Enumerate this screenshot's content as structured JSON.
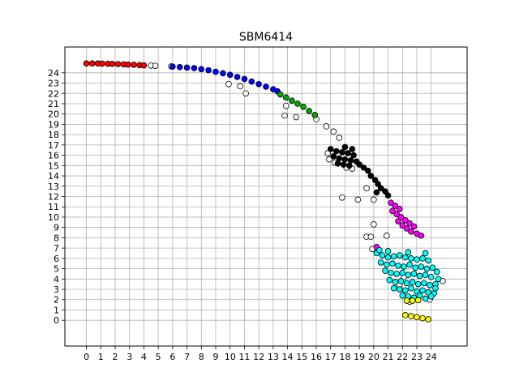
{
  "chart_data": {
    "type": "scatter",
    "title": "SBM6414",
    "xlabel": "",
    "ylabel": "",
    "xlim": [
      -1.5,
      26.5
    ],
    "ylim": [
      -2.5,
      26.5
    ],
    "xticks": [
      0,
      1,
      2,
      3,
      4,
      5,
      6,
      7,
      8,
      9,
      10,
      11,
      12,
      13,
      14,
      15,
      16,
      17,
      18,
      19,
      20,
      21,
      22,
      23,
      24
    ],
    "yticks": [
      0,
      1,
      2,
      3,
      4,
      5,
      6,
      7,
      8,
      9,
      10,
      11,
      12,
      13,
      14,
      15,
      16,
      17,
      18,
      19,
      20,
      21,
      22,
      23,
      24
    ],
    "grid": true,
    "legend": "none",
    "series": [
      {
        "color": "#ff0000",
        "points": [
          [
            0,
            24.9
          ],
          [
            0.4,
            24.9
          ],
          [
            0.8,
            24.9
          ],
          [
            1.1,
            24.88
          ],
          [
            1.5,
            24.87
          ],
          [
            1.8,
            24.86
          ],
          [
            2.2,
            24.84
          ],
          [
            2.6,
            24.82
          ],
          [
            2.9,
            24.8
          ],
          [
            3.3,
            24.78
          ],
          [
            3.7,
            24.75
          ],
          [
            4.0,
            24.72
          ]
        ]
      },
      {
        "color": "#ffffff",
        "points": [
          [
            4.5,
            24.7
          ],
          [
            4.8,
            24.68
          ],
          [
            5.9,
            24.62
          ],
          [
            9.9,
            22.9
          ],
          [
            10.7,
            22.7
          ],
          [
            11.1,
            22.0
          ],
          [
            13.9,
            20.8
          ],
          [
            14.6,
            19.7
          ],
          [
            13.8,
            19.85
          ],
          [
            16.0,
            19.5
          ],
          [
            16.7,
            18.8
          ],
          [
            17.2,
            18.3
          ],
          [
            17.6,
            17.7
          ],
          [
            16.8,
            16.2
          ],
          [
            16.9,
            15.6
          ],
          [
            17.3,
            15.3
          ],
          [
            18.1,
            14.8
          ],
          [
            18.5,
            14.7
          ],
          [
            19.5,
            12.8
          ],
          [
            18.9,
            11.7
          ],
          [
            20.0,
            11.7
          ],
          [
            17.8,
            11.9
          ],
          [
            20.0,
            9.3
          ],
          [
            19.5,
            8.1
          ],
          [
            19.8,
            8.1
          ],
          [
            20.9,
            8.2
          ],
          [
            19.9,
            6.9
          ],
          [
            22.1,
            4.2
          ],
          [
            21.8,
            3.4
          ],
          [
            23.9,
            2.0
          ],
          [
            24.8,
            3.8
          ],
          [
            22.5,
            1.8
          ]
        ]
      },
      {
        "color": "#0000ff",
        "points": [
          [
            6.0,
            24.6
          ],
          [
            6.5,
            24.55
          ],
          [
            7.0,
            24.5
          ],
          [
            7.5,
            24.45
          ],
          [
            8.0,
            24.35
          ],
          [
            8.5,
            24.25
          ],
          [
            9.0,
            24.1
          ],
          [
            9.5,
            23.95
          ],
          [
            10.0,
            23.8
          ],
          [
            10.5,
            23.6
          ],
          [
            11.0,
            23.4
          ],
          [
            11.5,
            23.15
          ],
          [
            12.0,
            22.9
          ],
          [
            12.5,
            22.65
          ],
          [
            13.0,
            22.4
          ],
          [
            13.3,
            22.2
          ]
        ]
      },
      {
        "color": "#00aa00",
        "points": [
          [
            13.5,
            21.9
          ],
          [
            13.9,
            21.6
          ],
          [
            14.3,
            21.3
          ],
          [
            14.7,
            21.0
          ],
          [
            15.1,
            20.7
          ],
          [
            15.5,
            20.3
          ],
          [
            15.9,
            19.9
          ]
        ]
      },
      {
        "color": "#000000",
        "points": [
          [
            17.0,
            16.6
          ],
          [
            17.4,
            16.4
          ],
          [
            17.8,
            16.3
          ],
          [
            18.2,
            16.2
          ],
          [
            18.6,
            16.0
          ],
          [
            17.2,
            15.9
          ],
          [
            17.6,
            15.7
          ],
          [
            18.0,
            15.6
          ],
          [
            18.4,
            15.5
          ],
          [
            18.8,
            15.4
          ],
          [
            17.5,
            15.2
          ],
          [
            17.9,
            15.1
          ],
          [
            18.3,
            15.0
          ],
          [
            19.0,
            15.1
          ],
          [
            19.3,
            14.8
          ],
          [
            19.6,
            14.5
          ],
          [
            19.8,
            14.0
          ],
          [
            20.1,
            13.6
          ],
          [
            20.3,
            13.2
          ],
          [
            20.5,
            12.8
          ],
          [
            20.8,
            12.5
          ],
          [
            21.0,
            12.1
          ],
          [
            20.2,
            12.4
          ],
          [
            18.0,
            16.8
          ],
          [
            18.5,
            16.6
          ]
        ]
      },
      {
        "color": "#ff00ff",
        "points": [
          [
            21.2,
            11.4
          ],
          [
            21.5,
            11.1
          ],
          [
            21.8,
            10.8
          ],
          [
            21.3,
            10.6
          ],
          [
            21.6,
            10.3
          ],
          [
            21.9,
            10.0
          ],
          [
            22.2,
            9.7
          ],
          [
            22.5,
            9.4
          ],
          [
            22.8,
            9.1
          ],
          [
            22.3,
            8.9
          ],
          [
            22.6,
            8.6
          ],
          [
            23.0,
            8.4
          ],
          [
            23.3,
            8.2
          ],
          [
            21.7,
            9.6
          ],
          [
            22.0,
            9.2
          ],
          [
            20.2,
            7.1
          ]
        ]
      },
      {
        "color": "#00ffff",
        "points": [
          [
            20.2,
            6.5
          ],
          [
            20.6,
            6.3
          ],
          [
            21.0,
            6.1
          ],
          [
            21.4,
            6.2
          ],
          [
            21.8,
            6.3
          ],
          [
            22.2,
            6.1
          ],
          [
            22.6,
            6.0
          ],
          [
            23.0,
            5.9
          ],
          [
            23.4,
            6.0
          ],
          [
            23.8,
            5.8
          ],
          [
            20.5,
            5.6
          ],
          [
            20.9,
            5.4
          ],
          [
            21.3,
            5.5
          ],
          [
            21.7,
            5.3
          ],
          [
            22.1,
            5.2
          ],
          [
            22.5,
            5.4
          ],
          [
            22.9,
            5.1
          ],
          [
            23.3,
            5.2
          ],
          [
            23.7,
            5.0
          ],
          [
            24.1,
            5.1
          ],
          [
            24.4,
            4.7
          ],
          [
            20.8,
            4.8
          ],
          [
            21.2,
            4.6
          ],
          [
            21.6,
            4.5
          ],
          [
            22.0,
            4.6
          ],
          [
            22.4,
            4.4
          ],
          [
            22.8,
            4.5
          ],
          [
            23.2,
            4.3
          ],
          [
            23.6,
            4.4
          ],
          [
            24.0,
            4.2
          ],
          [
            24.5,
            4.0
          ],
          [
            21.1,
            3.9
          ],
          [
            21.5,
            3.7
          ],
          [
            21.9,
            3.8
          ],
          [
            22.3,
            3.6
          ],
          [
            22.7,
            3.7
          ],
          [
            23.1,
            3.5
          ],
          [
            23.5,
            3.6
          ],
          [
            23.9,
            3.4
          ],
          [
            24.3,
            3.5
          ],
          [
            21.4,
            3.1
          ],
          [
            21.8,
            3.0
          ],
          [
            22.2,
            2.9
          ],
          [
            22.6,
            3.1
          ],
          [
            23.0,
            2.8
          ],
          [
            23.4,
            2.9
          ],
          [
            23.8,
            2.7
          ],
          [
            24.2,
            2.6
          ],
          [
            22.0,
            2.4
          ],
          [
            22.4,
            2.3
          ],
          [
            22.8,
            2.2
          ],
          [
            23.2,
            2.4
          ],
          [
            23.6,
            2.1
          ],
          [
            24.0,
            2.3
          ],
          [
            24.3,
            3.1
          ],
          [
            20.4,
            6.8
          ],
          [
            21.0,
            6.7
          ],
          [
            22.4,
            6.6
          ],
          [
            23.6,
            6.5
          ]
        ]
      },
      {
        "color": "#ffff00",
        "points": [
          [
            22.3,
            1.9
          ],
          [
            22.7,
            1.9
          ],
          [
            23.1,
            1.95
          ],
          [
            22.2,
            0.5
          ],
          [
            22.6,
            0.4
          ],
          [
            23.0,
            0.3
          ],
          [
            23.4,
            0.2
          ],
          [
            23.8,
            0.1
          ]
        ]
      }
    ]
  }
}
